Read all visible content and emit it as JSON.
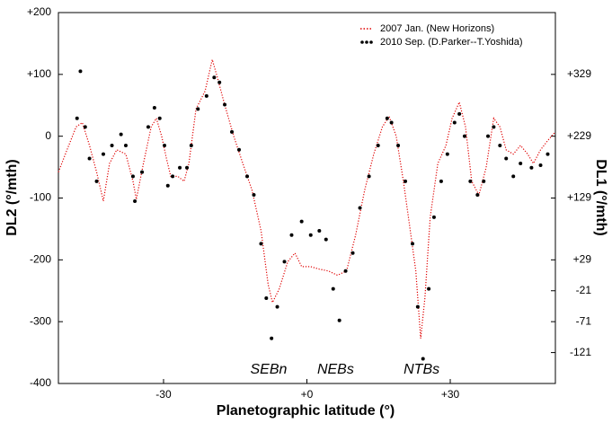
{
  "chart_data": {
    "type": "line",
    "xlabel": "Planetographic latitude (°)",
    "ylabel": "DL2 (°/mth)",
    "y2label": "DL1 (°/mth)",
    "xlim": [
      -52,
      52
    ],
    "xticks": [
      -30,
      {
        "value": 0,
        "label": "+0"
      },
      {
        "value": 30,
        "label": "+30"
      }
    ],
    "ylim": [
      -400,
      200
    ],
    "yticks": [
      -400,
      -300,
      -200,
      -100,
      0,
      {
        "value": 100,
        "label": "+100"
      },
      {
        "value": 200,
        "label": "+200"
      }
    ],
    "y2lim": [
      -171,
      429
    ],
    "y2ticks": [
      -121,
      -71,
      -21,
      {
        "value": 29,
        "label": "+29"
      },
      {
        "value": 129,
        "label": "+129"
      },
      {
        "value": 229,
        "label": "+229"
      },
      {
        "value": 329,
        "label": "+329"
      }
    ],
    "legend": "upper right",
    "annotations": [
      {
        "text": "SEBn",
        "x": -8,
        "y": -378
      },
      {
        "text": "NEBs",
        "x": 6,
        "y": -378
      },
      {
        "text": "NTBs",
        "x": 24,
        "y": -378
      }
    ],
    "series": [
      {
        "name": "2007 Jan. (New Horizons)",
        "color": "#e00000",
        "style": "dotted",
        "x": [
          -52,
          -50.2,
          -48.3,
          -47.0,
          -45.5,
          -44.0,
          -42.6,
          -41.3,
          -39.8,
          -37.9,
          -36.4,
          -35.7,
          -34.2,
          -32.6,
          -31.5,
          -30.4,
          -29.4,
          -28.5,
          -27.0,
          -25.7,
          -24.7,
          -23.2,
          -21.3,
          -19.8,
          -18.7,
          -17.2,
          -15.3,
          -13.4,
          -11.5,
          -9.6,
          -8.1,
          -7.2,
          -5.8,
          -4.0,
          -2.5,
          -1.1,
          0.8,
          2.6,
          4.5,
          6.4,
          8.3,
          10.2,
          12.1,
          14.0,
          15.8,
          17.2,
          18.7,
          20.2,
          21.5,
          22.8,
          23.8,
          24.7,
          25.8,
          27.4,
          29.1,
          30.4,
          31.9,
          33.2,
          34.5,
          36.0,
          37.5,
          39.1,
          40.4,
          41.7,
          43.2,
          44.7,
          46.2,
          47.4,
          48.9,
          50.4,
          52
        ],
        "values": [
          -58,
          -22,
          15,
          22,
          -15,
          -58,
          -105,
          -44,
          -22,
          -29,
          -73,
          -102,
          -44,
          15,
          29,
          0,
          -36,
          -65,
          -65,
          -73,
          -44,
          44,
          73,
          124,
          94,
          51,
          0,
          -44,
          -87,
          -153,
          -240,
          -269,
          -247,
          -203,
          -189,
          -211,
          -211,
          -215,
          -218,
          -225,
          -218,
          -160,
          -87,
          -29,
          15,
          32,
          0,
          -73,
          -145,
          -218,
          -327,
          -262,
          -131,
          -44,
          -15,
          29,
          55,
          15,
          -73,
          -95,
          -51,
          29,
          15,
          -22,
          -29,
          -15,
          -29,
          -44,
          -22,
          -7,
          7
        ]
      },
      {
        "name": "2010 Sep. (D.Parker--T.Yoshida)",
        "color": "#000000",
        "style": "points",
        "x": [
          -48.1,
          -47.4,
          -46.4,
          -45.5,
          -44.0,
          -42.6,
          -40.8,
          -38.9,
          -37.9,
          -36.4,
          -36.0,
          -34.5,
          -33.2,
          -31.9,
          -30.8,
          -29.8,
          -29.1,
          -28.1,
          -26.6,
          -25.1,
          -24.2,
          -22.8,
          -21.0,
          -19.4,
          -18.3,
          -17.2,
          -15.7,
          -14.2,
          -12.5,
          -11.1,
          -9.6,
          -8.5,
          -7.4,
          -6.2,
          -4.7,
          -3.2,
          -1.1,
          0.8,
          2.6,
          4.0,
          5.5,
          6.8,
          8.1,
          9.6,
          11.1,
          13.0,
          14.9,
          16.8,
          17.7,
          19.1,
          20.6,
          22.1,
          23.2,
          24.3,
          25.5,
          26.6,
          28.1,
          29.4,
          30.9,
          31.9,
          33.0,
          34.2,
          35.7,
          37.0,
          37.9,
          39.1,
          40.4,
          41.7,
          43.2,
          44.7,
          47.0,
          48.9,
          50.4
        ],
        "values": [
          29,
          105,
          15,
          -36,
          -73,
          -29,
          -15,
          3,
          -15,
          -65,
          -105,
          -58,
          15,
          46,
          29,
          -15,
          -80,
          -65,
          -51,
          -51,
          -15,
          44,
          65,
          95,
          87,
          51,
          7,
          -22,
          -65,
          -95,
          -174,
          -262,
          -327,
          -276,
          -203,
          -160,
          -138,
          -160,
          -153,
          -167,
          -247,
          -298,
          -218,
          -189,
          -116,
          -65,
          -15,
          29,
          22,
          -15,
          -73,
          -174,
          -276,
          -360,
          -247,
          -131,
          -73,
          -29,
          22,
          36,
          0,
          -73,
          -95,
          -73,
          0,
          15,
          -15,
          -36,
          -65,
          -44,
          -51,
          -47,
          -29
        ]
      }
    ]
  }
}
